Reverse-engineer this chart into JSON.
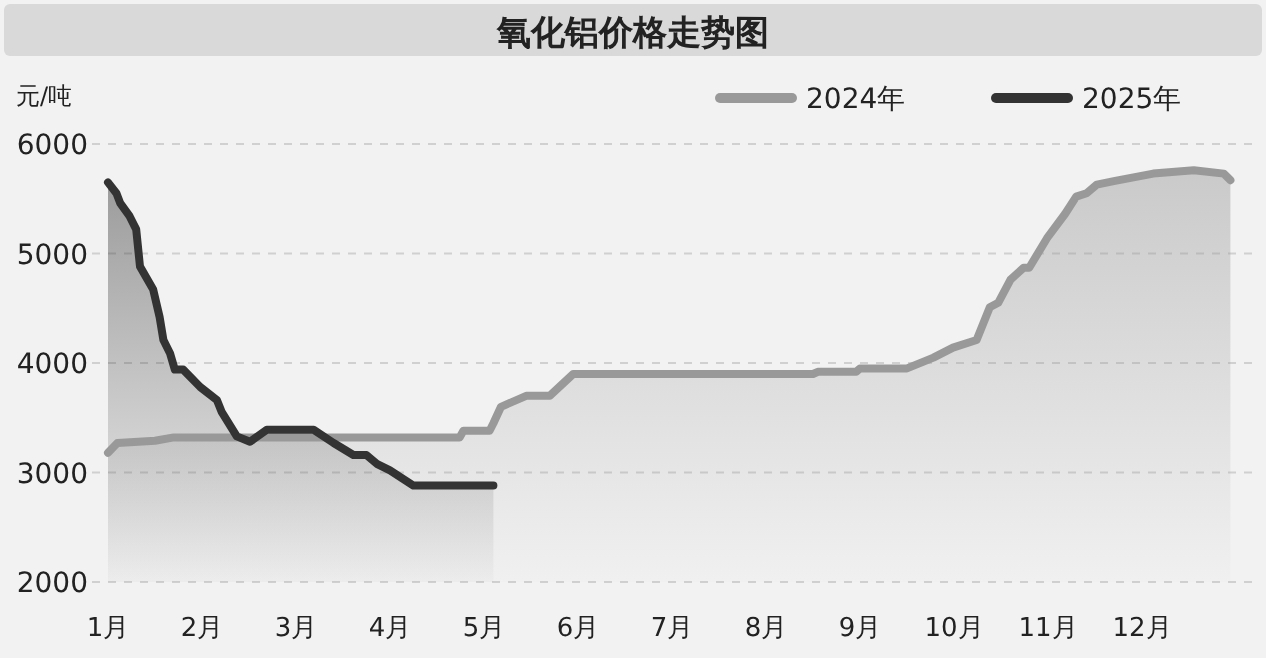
{
  "chart_data": {
    "type": "area",
    "title": "氧化铝价格走势图",
    "ylabel": "元/吨",
    "xlim": [
      0.83,
      13.17
    ],
    "xticks": [
      {
        "value": 1,
        "label": "1月"
      },
      {
        "value": 2,
        "label": "2月"
      },
      {
        "value": 3,
        "label": "3月"
      },
      {
        "value": 4,
        "label": "4月"
      },
      {
        "value": 5,
        "label": "5月"
      },
      {
        "value": 6,
        "label": "6月"
      },
      {
        "value": 7,
        "label": "7月"
      },
      {
        "value": 8,
        "label": "8月"
      },
      {
        "value": 9,
        "label": "9月"
      },
      {
        "value": 10,
        "label": "10月"
      },
      {
        "value": 11,
        "label": "11月"
      },
      {
        "value": 12,
        "label": "12月"
      }
    ],
    "ylim": [
      2000,
      6000
    ],
    "yticks": [
      2000,
      3000,
      4000,
      5000,
      6000
    ],
    "grid": "y",
    "legend": "top right",
    "series": [
      {
        "name": "2024年",
        "color": "#999999",
        "x": [
          1,
          1.1,
          1.5,
          1.7,
          2,
          3,
          4,
          4.74,
          4.78,
          5.06,
          5.1,
          5.18,
          5.45,
          5.7,
          5.95,
          7,
          8,
          8.5,
          8.55,
          8.96,
          9.0,
          9.5,
          9.78,
          9.99,
          10.24,
          10.38,
          10.47,
          10.6,
          10.74,
          10.8,
          10.99,
          11.18,
          11.3,
          11.41,
          11.52,
          11.7,
          12.12,
          12.55,
          12.87,
          12.94
        ],
        "values": [
          3180,
          3270,
          3290,
          3320,
          3320,
          3320,
          3320,
          3320,
          3380,
          3380,
          3450,
          3600,
          3700,
          3700,
          3900,
          3900,
          3900,
          3900,
          3920,
          3920,
          3950,
          3950,
          4050,
          4140,
          4210,
          4510,
          4550,
          4760,
          4870,
          4870,
          5140,
          5360,
          5520,
          5550,
          5630,
          5660,
          5730,
          5760,
          5730,
          5670
        ]
      },
      {
        "name": "2025年",
        "color": "#333333",
        "x": [
          1,
          1.09,
          1.13,
          1.23,
          1.3,
          1.34,
          1.48,
          1.55,
          1.59,
          1.66,
          1.71,
          1.8,
          1.98,
          2.16,
          2.21,
          2.37,
          2.51,
          2.69,
          3.19,
          3.4,
          3.61,
          3.75,
          3.86,
          4.0,
          4.25,
          5.1
        ],
        "values": [
          5650,
          5550,
          5460,
          5340,
          5220,
          4880,
          4670,
          4420,
          4210,
          4090,
          3940,
          3940,
          3780,
          3660,
          3550,
          3330,
          3280,
          3390,
          3390,
          3270,
          3160,
          3160,
          3080,
          3020,
          2880,
          2880
        ]
      }
    ]
  }
}
